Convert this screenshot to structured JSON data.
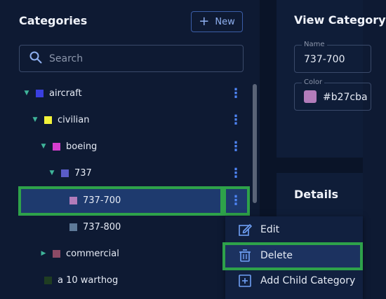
{
  "categories_panel": {
    "title": "Categories",
    "new_button_label": "New",
    "search_placeholder": "Search"
  },
  "tree": {
    "items": [
      {
        "label": "aircraft",
        "color": "#3a3fe0",
        "expanded": true
      },
      {
        "label": "civilian",
        "color": "#f2f23a",
        "expanded": true
      },
      {
        "label": "boeing",
        "color": "#d63ecf",
        "expanded": true
      },
      {
        "label": "737",
        "color": "#5a5cc8",
        "expanded": true
      },
      {
        "label": "737-700",
        "color": "#b27cba",
        "selected": true
      },
      {
        "label": "737-800",
        "color": "#5e7a99"
      },
      {
        "label": "commercial",
        "color": "#8c4a66",
        "expanded": false
      },
      {
        "label": "a 10 warthog",
        "color": "#1f3d22"
      }
    ]
  },
  "context_menu": {
    "items": [
      {
        "label": "Edit",
        "icon": "edit-icon"
      },
      {
        "label": "Delete",
        "icon": "trash-icon"
      },
      {
        "label": "Add Child Category",
        "icon": "add-box-icon"
      }
    ]
  },
  "view_panel": {
    "title": "View Category",
    "name_label": "Name",
    "name_value": "737-700",
    "color_label": "Color",
    "color_value": "#b27cba",
    "details_title": "Details"
  }
}
